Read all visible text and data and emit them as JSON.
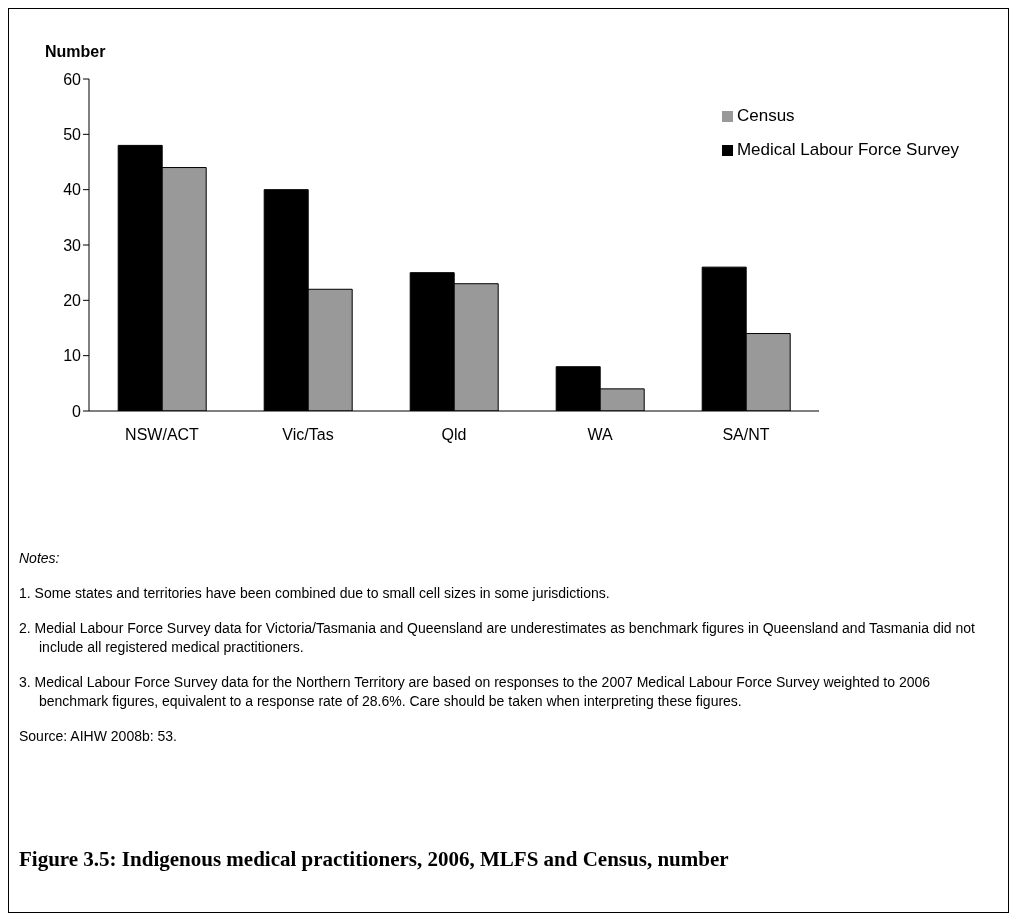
{
  "chart_data": {
    "type": "bar",
    "title": "Figure 3.5: Indigenous medical practitioners, 2006, MLFS and Census, number",
    "ylabel": "Number",
    "categories": [
      "NSW/ACT",
      "Vic/Tas",
      "Qld",
      "WA",
      "SA/NT"
    ],
    "series": [
      {
        "name": "Medical Labour Force Survey",
        "color": "#000000",
        "values": [
          48,
          40,
          25,
          8,
          26
        ]
      },
      {
        "name": "Census",
        "color": "#999999",
        "values": [
          44,
          22,
          23,
          4,
          14
        ]
      }
    ],
    "ylim": [
      0,
      60
    ],
    "yticks": [
      0,
      10,
      20,
      30,
      40,
      50,
      60
    ],
    "grid": false,
    "legend": "top right",
    "annotations": [
      "Notes:",
      "1.  Some states and territories have been combined due to small cell sizes in some jurisdictions.",
      "2.  Medial Labour Force Survey data for Victoria/Tasmania and Queensland are underestimates as benchmark figures in Queensland and Tasmania did not include all registered medical practitioners.",
      "3.  Medical Labour Force Survey data for the Northern Territory are based on responses to the 2007 Medical Labour Force Survey weighted to 2006 benchmark figures, equivalent to a response rate of 28.6%. Care should be taken when interpreting these figures.",
      "Source: AIHW 2008b: 53."
    ]
  }
}
